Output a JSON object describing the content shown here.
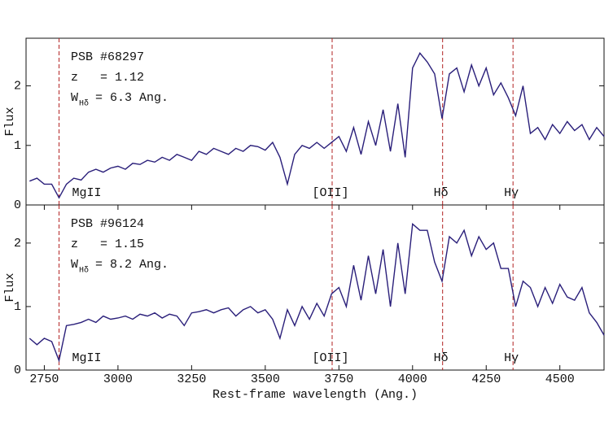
{
  "chart_data": [
    {
      "type": "line",
      "ylabel": "Flux",
      "color": "#2a1f7a",
      "line_color": "#b22222",
      "xlim": [
        2688,
        4650
      ],
      "ylim": [
        0,
        2.8
      ],
      "yticks": [
        0,
        1,
        2
      ],
      "label_lines": [
        "PSB #68297",
        "z   = 1.12"
      ],
      "width_label": {
        "symbol": "W",
        "subscript": "Hδ",
        "text": " = 6.3 Ang."
      },
      "lines": [
        {
          "x": 2800,
          "label": "MgII"
        },
        {
          "x": 3727,
          "label": "[OII]"
        },
        {
          "x": 4102,
          "label": "Hδ"
        },
        {
          "x": 4341,
          "label": "Hγ"
        }
      ],
      "x": [
        2700,
        2725,
        2750,
        2775,
        2800,
        2825,
        2850,
        2875,
        2900,
        2925,
        2950,
        2975,
        3000,
        3025,
        3050,
        3075,
        3100,
        3125,
        3150,
        3175,
        3200,
        3225,
        3250,
        3275,
        3300,
        3325,
        3350,
        3375,
        3400,
        3425,
        3450,
        3475,
        3500,
        3525,
        3550,
        3575,
        3600,
        3625,
        3650,
        3675,
        3700,
        3725,
        3750,
        3775,
        3800,
        3825,
        3850,
        3875,
        3900,
        3925,
        3950,
        3975,
        4000,
        4025,
        4050,
        4075,
        4100,
        4125,
        4150,
        4175,
        4200,
        4225,
        4250,
        4275,
        4300,
        4325,
        4350,
        4375,
        4400,
        4425,
        4450,
        4475,
        4500,
        4525,
        4550,
        4575,
        4600,
        4625,
        4650
      ],
      "values": [
        0.4,
        0.45,
        0.35,
        0.35,
        0.12,
        0.35,
        0.45,
        0.42,
        0.55,
        0.6,
        0.55,
        0.62,
        0.65,
        0.6,
        0.7,
        0.68,
        0.75,
        0.72,
        0.8,
        0.75,
        0.85,
        0.8,
        0.75,
        0.9,
        0.85,
        0.95,
        0.9,
        0.85,
        0.95,
        0.9,
        1.0,
        0.98,
        0.92,
        1.05,
        0.8,
        0.35,
        0.85,
        1.0,
        0.95,
        1.05,
        0.95,
        1.05,
        1.15,
        0.9,
        1.3,
        0.85,
        1.4,
        1.0,
        1.6,
        0.9,
        1.7,
        0.8,
        2.3,
        2.55,
        2.4,
        2.2,
        1.45,
        2.2,
        2.3,
        1.9,
        2.35,
        2.0,
        2.3,
        1.85,
        2.05,
        1.8,
        1.5,
        2.0,
        1.2,
        1.3,
        1.1,
        1.35,
        1.2,
        1.4,
        1.25,
        1.35,
        1.1,
        1.3,
        1.15
      ]
    },
    {
      "type": "line",
      "ylabel": "Flux",
      "xlabel": "Rest-frame wavelength (Ang.)",
      "color": "#2a1f7a",
      "line_color": "#b22222",
      "xlim": [
        2688,
        4650
      ],
      "ylim": [
        0,
        2.6
      ],
      "yticks": [
        0,
        1,
        2
      ],
      "xticks": [
        2750,
        3000,
        3250,
        3500,
        3750,
        4000,
        4250,
        4500
      ],
      "label_lines": [
        "PSB #96124",
        "z   = 1.15"
      ],
      "width_label": {
        "symbol": "W",
        "subscript": "Hδ",
        "text": " = 8.2 Ang."
      },
      "lines": [
        {
          "x": 2800,
          "label": "MgII"
        },
        {
          "x": 3727,
          "label": "[OII]"
        },
        {
          "x": 4102,
          "label": "Hδ"
        },
        {
          "x": 4341,
          "label": "Hγ"
        }
      ],
      "x": [
        2700,
        2725,
        2750,
        2775,
        2800,
        2825,
        2850,
        2875,
        2900,
        2925,
        2950,
        2975,
        3000,
        3025,
        3050,
        3075,
        3100,
        3125,
        3150,
        3175,
        3200,
        3225,
        3250,
        3275,
        3300,
        3325,
        3350,
        3375,
        3400,
        3425,
        3450,
        3475,
        3500,
        3525,
        3550,
        3575,
        3600,
        3625,
        3650,
        3675,
        3700,
        3725,
        3750,
        3775,
        3800,
        3825,
        3850,
        3875,
        3900,
        3925,
        3950,
        3975,
        4000,
        4025,
        4050,
        4075,
        4100,
        4125,
        4150,
        4175,
        4200,
        4225,
        4250,
        4275,
        4300,
        4325,
        4350,
        4375,
        4400,
        4425,
        4450,
        4475,
        4500,
        4525,
        4550,
        4575,
        4600,
        4625,
        4650
      ],
      "values": [
        0.5,
        0.4,
        0.5,
        0.45,
        0.15,
        0.7,
        0.72,
        0.75,
        0.8,
        0.75,
        0.85,
        0.8,
        0.82,
        0.85,
        0.8,
        0.88,
        0.85,
        0.9,
        0.82,
        0.88,
        0.85,
        0.7,
        0.9,
        0.92,
        0.95,
        0.9,
        0.95,
        0.98,
        0.85,
        0.95,
        1.0,
        0.9,
        0.95,
        0.8,
        0.5,
        0.95,
        0.7,
        1.0,
        0.8,
        1.05,
        0.85,
        1.2,
        1.3,
        1.0,
        1.65,
        1.1,
        1.8,
        1.2,
        1.9,
        1.0,
        2.0,
        1.2,
        2.3,
        2.2,
        2.2,
        1.7,
        1.4,
        2.1,
        2.0,
        2.2,
        1.8,
        2.1,
        1.9,
        2.0,
        1.6,
        1.6,
        1.0,
        1.4,
        1.3,
        1.0,
        1.3,
        1.05,
        1.35,
        1.15,
        1.1,
        1.3,
        0.9,
        0.75,
        0.55
      ]
    }
  ]
}
